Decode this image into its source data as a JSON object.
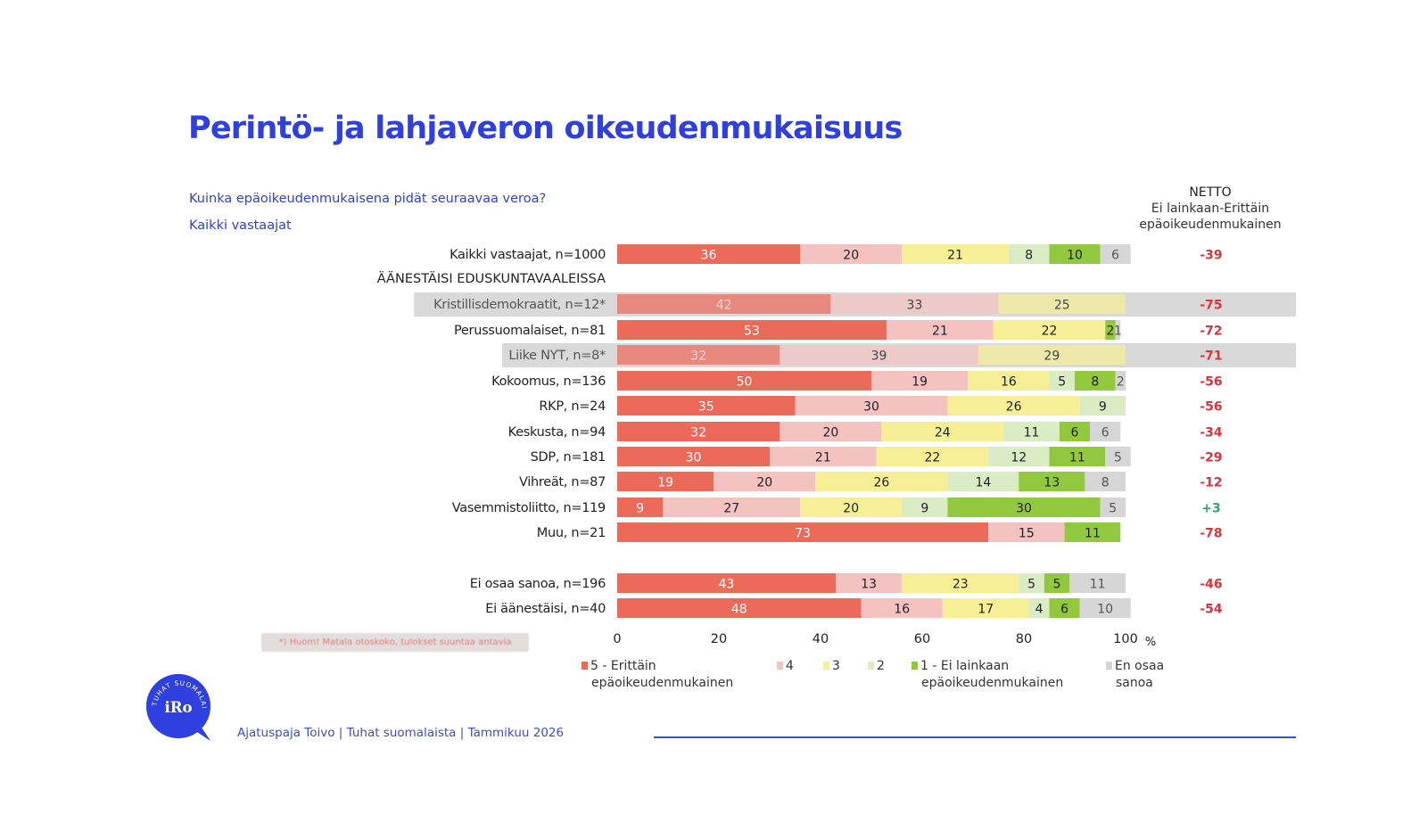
{
  "header": {
    "title": "Perintö- ja lahjaveron oikeudenmukaisuus",
    "question": "Kuinka epäoikeudenmukaisena pidät seuraavaa veroa?",
    "group": "Kaikki vastaajat"
  },
  "netto_header": {
    "line1": "NETTO",
    "line2": "Ei lainkaan-Erittäin",
    "line3": "epäoikeudenmukainen"
  },
  "footnote": "*) Huom! Matala otoskoko, tulokset suuntaa antavia",
  "footer": {
    "source": "Ajatuspaja Toivo | Tuhat suomalaista | Tammikuu 2026",
    "logo_text": "iRo",
    "logo_ring_text": "TUHAT SUOMALAISTA"
  },
  "colors": {
    "c5": "#ec6a5a",
    "c4": "#f4c2c0",
    "c3": "#f6ef96",
    "c2": "#d9ecc4",
    "c1": "#92c83e",
    "ceos": "#d6d6d6",
    "netto_negative": "#e0323a",
    "netto_positive": "#2ea86a",
    "brand": "#2f3fe0"
  },
  "chart_data": {
    "type": "bar",
    "orientation": "horizontal-stacked-100",
    "title": "Perintö- ja lahjaveron oikeudenmukaisuus",
    "xlabel": "%",
    "xlim": [
      0,
      100
    ],
    "xticks": [
      "0",
      "20",
      "40",
      "60",
      "80",
      "100"
    ],
    "xunit": "%",
    "legend_position": "bottom",
    "series": [
      {
        "key": "c5",
        "name": "5 - Erittäin epäoikeudenmukainen",
        "name_line1": "5 - Erittäin",
        "name_line2": "epäoikeudenmukainen"
      },
      {
        "key": "c4",
        "name": "4",
        "name_line1": "4",
        "name_line2": ""
      },
      {
        "key": "c3",
        "name": "3",
        "name_line1": "3",
        "name_line2": ""
      },
      {
        "key": "c2",
        "name": "2",
        "name_line1": "2",
        "name_line2": ""
      },
      {
        "key": "c1",
        "name": "1 - Ei lainkaan epäoikeudenmukainen",
        "name_line1": "1 - Ei lainkaan",
        "name_line2": "epäoikeudenmukainen"
      },
      {
        "key": "ceos",
        "name": "En osaa sanoa",
        "name_line1": "En osaa",
        "name_line2": "sanoa"
      }
    ],
    "section_label": "ÄÄNESTÄISI EDUSKUNTAVAALEISSA",
    "rows": [
      {
        "label": "Kaikki vastaajat, n=1000",
        "values": [
          36,
          20,
          21,
          8,
          10,
          6
        ],
        "netto": "-39",
        "low_sample": false
      },
      {
        "label": "Kristillisdemokraatit, n=12*",
        "values": [
          42,
          33,
          25,
          0,
          0,
          0
        ],
        "netto": "-75",
        "low_sample": true
      },
      {
        "label": "Perussuomalaiset, n=81",
        "values": [
          53,
          21,
          22,
          0,
          2,
          1
        ],
        "netto": "-72",
        "low_sample": false
      },
      {
        "label": "Liike NYT, n=8*",
        "values": [
          32,
          39,
          29,
          0,
          0,
          0
        ],
        "netto": "-71",
        "low_sample": true
      },
      {
        "label": "Kokoomus, n=136",
        "values": [
          50,
          19,
          16,
          5,
          8,
          2
        ],
        "netto": "-56",
        "low_sample": false
      },
      {
        "label": "RKP, n=24",
        "values": [
          35,
          30,
          26,
          9,
          0,
          0
        ],
        "netto": "-56",
        "low_sample": false
      },
      {
        "label": "Keskusta, n=94",
        "values": [
          32,
          20,
          24,
          11,
          6,
          6
        ],
        "netto": "-34",
        "low_sample": false
      },
      {
        "label": "SDP, n=181",
        "values": [
          30,
          21,
          22,
          12,
          11,
          5
        ],
        "netto": "-29",
        "low_sample": false
      },
      {
        "label": "Vihreät, n=87",
        "values": [
          19,
          20,
          26,
          14,
          13,
          8
        ],
        "netto": "-12",
        "low_sample": false
      },
      {
        "label": "Vasemmistoliitto, n=119",
        "values": [
          9,
          27,
          20,
          9,
          30,
          5
        ],
        "netto": "+3",
        "low_sample": false
      },
      {
        "label": "Muu, n=21",
        "values": [
          73,
          15,
          0,
          0,
          11,
          0
        ],
        "netto": "-78",
        "low_sample": false
      },
      {
        "label": "Ei osaa sanoa, n=196",
        "values": [
          43,
          13,
          23,
          5,
          5,
          11
        ],
        "netto": "-46",
        "low_sample": false
      },
      {
        "label": "Ei äänestäisi, n=40",
        "values": [
          48,
          16,
          17,
          4,
          6,
          10
        ],
        "netto": "-54",
        "low_sample": false
      }
    ]
  }
}
